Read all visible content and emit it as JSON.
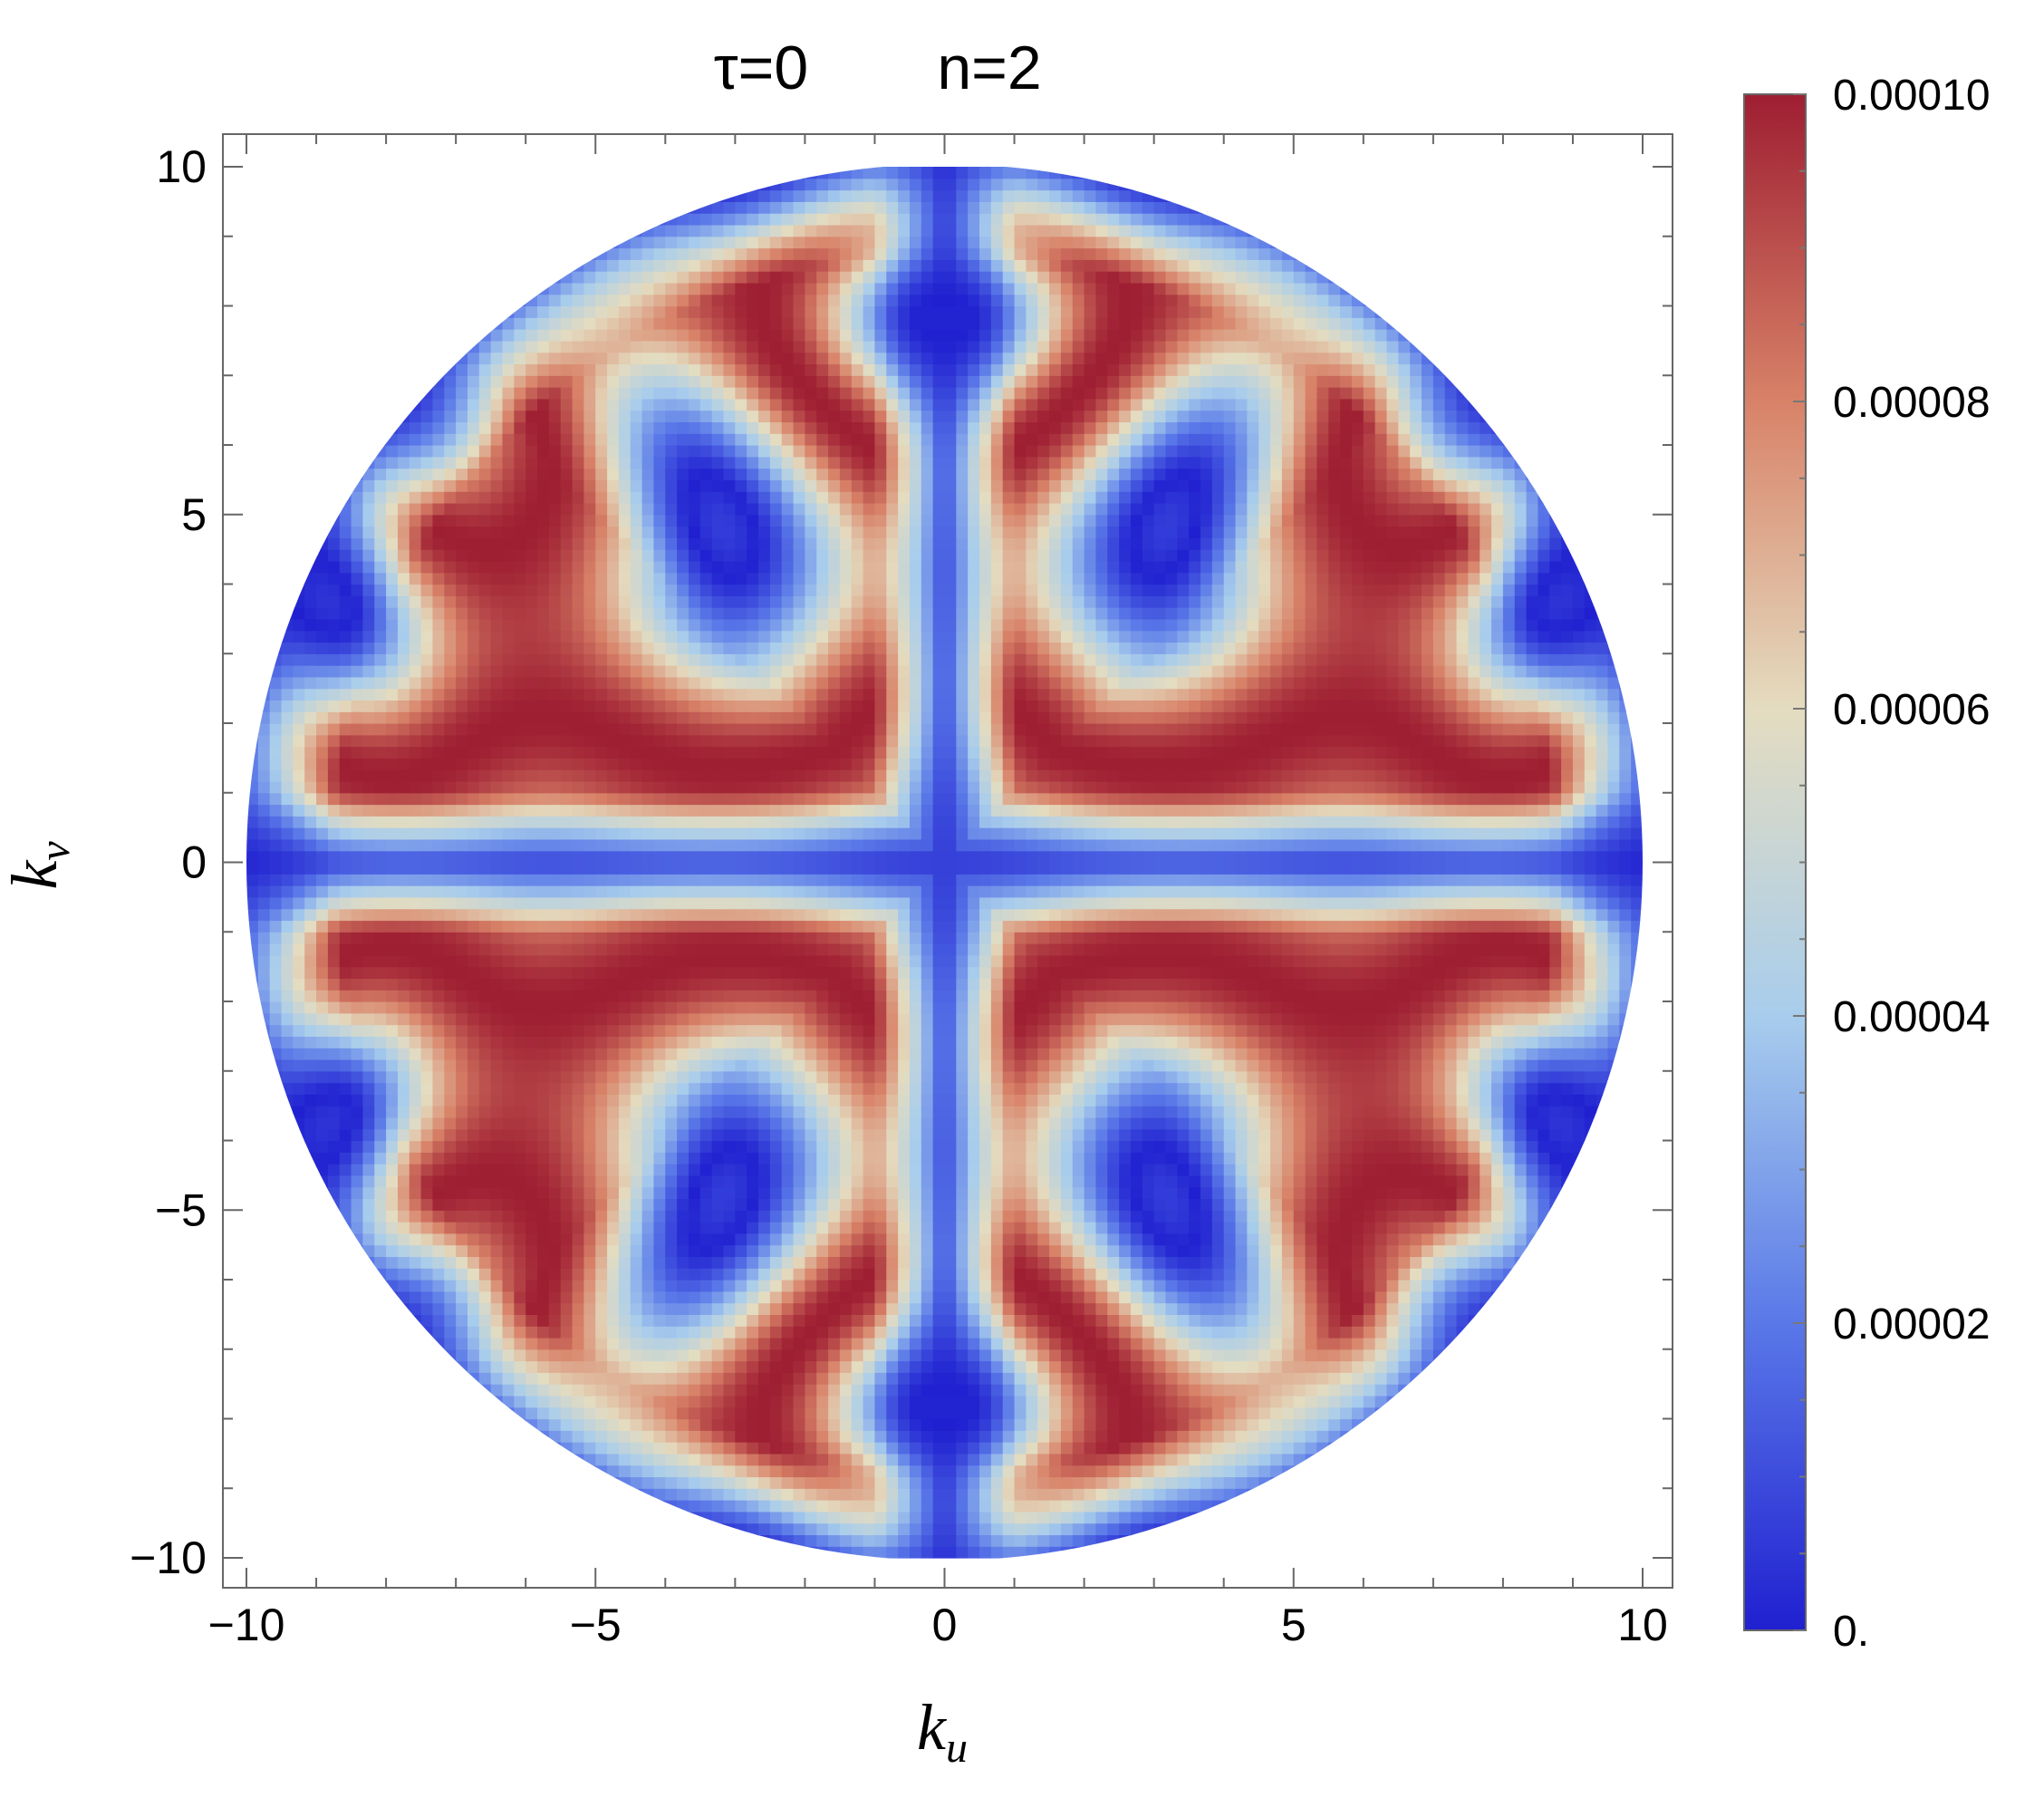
{
  "chart_data": {
    "type": "heatmap",
    "title_left": "τ=0",
    "title_right": "n=2",
    "xlabel": {
      "base": "k",
      "sub": "u"
    },
    "ylabel": {
      "base": "k",
      "sub": "v"
    },
    "xlim": [
      -10,
      10
    ],
    "ylim": [
      -10,
      10
    ],
    "x_ticks": [
      -10,
      -5,
      0,
      5,
      10
    ],
    "y_ticks": [
      -10,
      -5,
      0,
      5,
      10
    ],
    "x_tick_labels": [
      "−10",
      "−5",
      "0",
      "5",
      "10"
    ],
    "y_tick_labels": [
      "−10",
      "−5",
      "0",
      "5",
      "10"
    ],
    "domain": "disk of radius 10 centered at origin",
    "legend": "colorbar-right",
    "colorbar": {
      "range": [
        0,
        0.0001
      ],
      "ticks": [
        0,
        2e-05,
        4e-05,
        6e-05,
        8e-05,
        0.0001
      ],
      "tick_labels": [
        "0.",
        "0.00002",
        "0.00004",
        "0.00006",
        "0.00008",
        "0.00010"
      ],
      "colors": [
        "#2020d0",
        "#5a78e8",
        "#a8cdec",
        "#e4dcc0",
        "#d88268",
        "#9e1e32"
      ]
    }
  }
}
